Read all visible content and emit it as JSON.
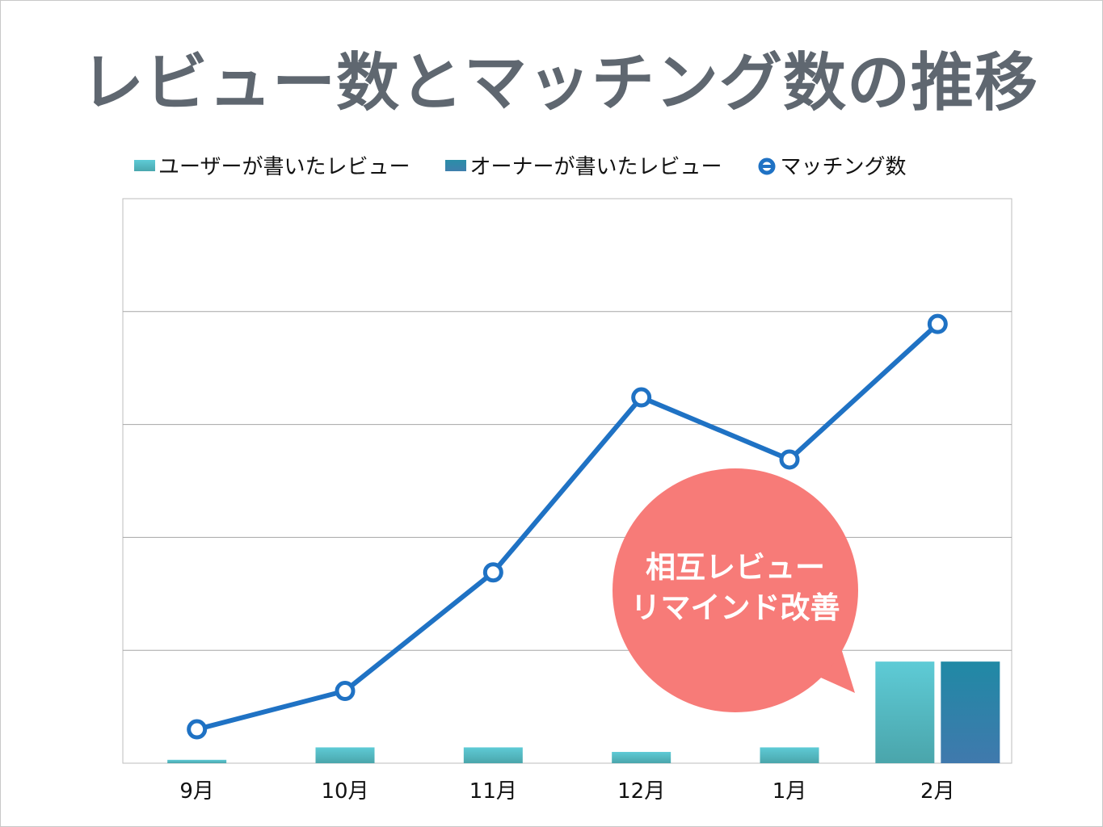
{
  "title": "レビュー数とマッチング数の推移",
  "callout": {
    "line1": "相互レビュー",
    "line2": "リマインド改善",
    "color": "#f77b78"
  },
  "chart_data": {
    "type": "bar",
    "categories": [
      "9月",
      "10月",
      "11月",
      "12月",
      "1月",
      "2月"
    ],
    "series": [
      {
        "name": "ユーザーが書いたレビュー",
        "type": "bar",
        "color": "#5ecbd6",
        "values": [
          0.3,
          1.4,
          1.4,
          1.0,
          1.4,
          9.0
        ]
      },
      {
        "name": "オーナーが書いたレビュー",
        "type": "bar",
        "color": "#2a8ea8",
        "values": [
          null,
          null,
          null,
          null,
          null,
          9.0
        ]
      },
      {
        "name": "マッチング数",
        "type": "line",
        "color": "#1f72c4",
        "values": [
          3,
          6.4,
          16.9,
          32.4,
          26.9,
          38.9
        ]
      }
    ],
    "ylim": [
      0,
      50
    ],
    "grid": true,
    "legend": "top"
  }
}
